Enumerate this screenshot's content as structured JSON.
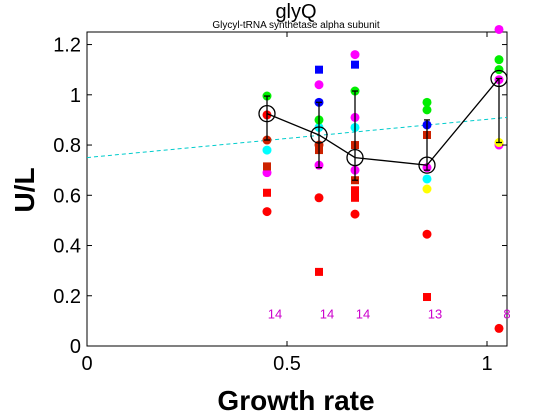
{
  "chart_data": {
    "type": "scatter",
    "title": "glyQ",
    "subtitle": "Glycyl-tRNA synthetase alpha subunit",
    "xlabel": "Growth rate",
    "ylabel": "U/L",
    "xlim": [
      0,
      1.05
    ],
    "ylim": [
      0,
      1.25
    ],
    "x_ticks": [
      {
        "value": 0,
        "label": "0"
      },
      {
        "value": 0.5,
        "label": "0.5"
      },
      {
        "value": 1,
        "label": "1"
      }
    ],
    "y_ticks": [
      {
        "value": 0,
        "label": "0"
      },
      {
        "value": 0.2,
        "label": "0.2"
      },
      {
        "value": 0.4,
        "label": "0.4"
      },
      {
        "value": 0.6,
        "label": "0.6"
      },
      {
        "value": 0.8,
        "label": "0.8"
      },
      {
        "value": 1,
        "label": "1"
      },
      {
        "value": 1.2,
        "label": "1.2"
      }
    ],
    "colors": {
      "red": "#ff0000",
      "darkred": "#cc2200",
      "magenta": "#ff00ff",
      "green": "#00ee00",
      "cyan": "#00ffff",
      "blue": "#0000ff",
      "yellow": "#ffff00",
      "trend": "#00cccc",
      "mean": "#000000",
      "count": "#cc00cc"
    },
    "points": [
      {
        "x": 0.45,
        "y": 0.535,
        "shape": "circle",
        "color": "red"
      },
      {
        "x": 0.45,
        "y": 0.61,
        "shape": "square",
        "color": "red"
      },
      {
        "x": 0.45,
        "y": 0.69,
        "shape": "circle",
        "color": "magenta"
      },
      {
        "x": 0.45,
        "y": 0.715,
        "shape": "square",
        "color": "darkred"
      },
      {
        "x": 0.45,
        "y": 0.78,
        "shape": "circle",
        "color": "cyan"
      },
      {
        "x": 0.45,
        "y": 0.82,
        "shape": "circle",
        "color": "darkred"
      },
      {
        "x": 0.45,
        "y": 0.92,
        "shape": "circle",
        "color": "red"
      },
      {
        "x": 0.45,
        "y": 0.995,
        "shape": "circle",
        "color": "green"
      },
      {
        "x": 0.58,
        "y": 0.295,
        "shape": "square",
        "color": "red"
      },
      {
        "x": 0.58,
        "y": 0.59,
        "shape": "circle",
        "color": "red"
      },
      {
        "x": 0.58,
        "y": 0.72,
        "shape": "circle",
        "color": "magenta"
      },
      {
        "x": 0.58,
        "y": 0.78,
        "shape": "square",
        "color": "darkred"
      },
      {
        "x": 0.58,
        "y": 0.8,
        "shape": "circle",
        "color": "darkred"
      },
      {
        "x": 0.58,
        "y": 0.87,
        "shape": "circle",
        "color": "cyan"
      },
      {
        "x": 0.58,
        "y": 0.9,
        "shape": "circle",
        "color": "green"
      },
      {
        "x": 0.58,
        "y": 0.97,
        "shape": "circle",
        "color": "blue"
      },
      {
        "x": 0.58,
        "y": 1.04,
        "shape": "circle",
        "color": "magenta"
      },
      {
        "x": 0.58,
        "y": 1.1,
        "shape": "square",
        "color": "blue"
      },
      {
        "x": 0.67,
        "y": 0.525,
        "shape": "circle",
        "color": "red"
      },
      {
        "x": 0.67,
        "y": 0.59,
        "shape": "square",
        "color": "red"
      },
      {
        "x": 0.67,
        "y": 0.62,
        "shape": "square",
        "color": "red"
      },
      {
        "x": 0.67,
        "y": 0.66,
        "shape": "square",
        "color": "darkred"
      },
      {
        "x": 0.67,
        "y": 0.7,
        "shape": "circle",
        "color": "magenta"
      },
      {
        "x": 0.67,
        "y": 0.8,
        "shape": "square",
        "color": "darkred"
      },
      {
        "x": 0.67,
        "y": 0.87,
        "shape": "circle",
        "color": "cyan"
      },
      {
        "x": 0.67,
        "y": 0.91,
        "shape": "circle",
        "color": "magenta"
      },
      {
        "x": 0.67,
        "y": 1.015,
        "shape": "circle",
        "color": "green"
      },
      {
        "x": 0.67,
        "y": 1.12,
        "shape": "square",
        "color": "blue"
      },
      {
        "x": 0.67,
        "y": 1.16,
        "shape": "circle",
        "color": "magenta"
      },
      {
        "x": 0.85,
        "y": 0.195,
        "shape": "square",
        "color": "red"
      },
      {
        "x": 0.85,
        "y": 0.445,
        "shape": "circle",
        "color": "red"
      },
      {
        "x": 0.85,
        "y": 0.625,
        "shape": "circle",
        "color": "yellow"
      },
      {
        "x": 0.85,
        "y": 0.665,
        "shape": "circle",
        "color": "cyan"
      },
      {
        "x": 0.85,
        "y": 0.71,
        "shape": "circle",
        "color": "magenta"
      },
      {
        "x": 0.85,
        "y": 0.84,
        "shape": "square",
        "color": "darkred"
      },
      {
        "x": 0.85,
        "y": 0.88,
        "shape": "circle",
        "color": "blue"
      },
      {
        "x": 0.85,
        "y": 0.94,
        "shape": "circle",
        "color": "green"
      },
      {
        "x": 0.85,
        "y": 0.97,
        "shape": "circle",
        "color": "green"
      },
      {
        "x": 1.03,
        "y": 0.07,
        "shape": "circle",
        "color": "red"
      },
      {
        "x": 1.03,
        "y": 0.8,
        "shape": "circle",
        "color": "magenta"
      },
      {
        "x": 1.03,
        "y": 0.81,
        "shape": "circle",
        "color": "yellow"
      },
      {
        "x": 1.03,
        "y": 1.06,
        "shape": "circle",
        "color": "magenta"
      },
      {
        "x": 1.03,
        "y": 1.1,
        "shape": "circle",
        "color": "green"
      },
      {
        "x": 1.03,
        "y": 1.14,
        "shape": "circle",
        "color": "green"
      },
      {
        "x": 1.03,
        "y": 1.26,
        "shape": "circle",
        "color": "magenta"
      }
    ],
    "mean_series": {
      "x": [
        0.45,
        0.58,
        0.67,
        0.85,
        1.03
      ],
      "y": [
        0.925,
        0.84,
        0.75,
        0.72,
        1.065
      ],
      "err_low": [
        0.82,
        0.71,
        0.66,
        0.7,
        0.81
      ],
      "err_high": [
        0.995,
        0.97,
        1.015,
        0.9,
        1.065
      ]
    },
    "trend_line": {
      "x": [
        0,
        1.05
      ],
      "y": [
        0.75,
        0.91
      ],
      "style": "dashed"
    },
    "counts": [
      {
        "x": 0.45,
        "label": "14"
      },
      {
        "x": 0.58,
        "label": "14"
      },
      {
        "x": 0.67,
        "label": "14"
      },
      {
        "x": 0.85,
        "label": "13"
      },
      {
        "x": 1.03,
        "label": "8"
      }
    ],
    "counts_y": 0.11
  }
}
